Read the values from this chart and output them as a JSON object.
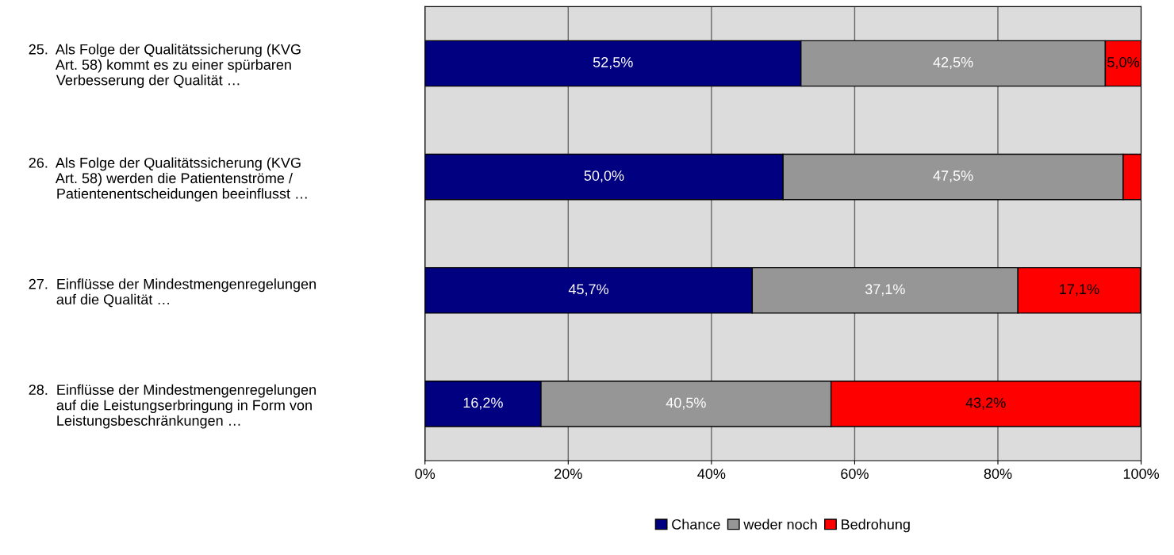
{
  "chart_data": {
    "type": "bar",
    "orientation": "horizontal",
    "stacked": true,
    "categories": [
      "25.  Als Folge der Qualitätssicherung (KVG\n       Art. 58) kommt es zu einer spürbaren\n       Verbesserung der Qualität …",
      "26.  Als Folge der Qualitätssicherung (KVG\n       Art. 58) werden die Patientenströme /\n       Patientenentscheidungen beeinflusst …",
      "27.  Einflüsse der Mindestmengenregelungen\n       auf die Qualität …",
      "28.  Einflüsse der Mindestmengenregelungen\n       auf die Leistungserbringung in Form von\n       Leistungsbeschränkungen …"
    ],
    "series": [
      {
        "name": "Chance",
        "color": "#000080",
        "values": [
          52.5,
          50.0,
          45.7,
          16.2
        ],
        "value_labels": [
          "52,5%",
          "50,0%",
          "45,7%",
          "16,2%"
        ]
      },
      {
        "name": "weder noch",
        "color": "#969696",
        "values": [
          42.5,
          47.5,
          37.1,
          40.5
        ],
        "value_labels": [
          "42,5%",
          "47,5%",
          "37,1%",
          "40,5%"
        ]
      },
      {
        "name": "Bedrohung",
        "color": "#ff0000",
        "values": [
          5.0,
          2.5,
          17.1,
          43.2
        ],
        "value_labels": [
          "5,0%",
          null,
          "17,1%",
          "43,2%"
        ]
      }
    ],
    "xlim": [
      0,
      100
    ],
    "xticks": [
      {
        "value": 0,
        "label": "0%"
      },
      {
        "value": 20,
        "label": "20%"
      },
      {
        "value": 40,
        "label": "40%"
      },
      {
        "value": 60,
        "label": "60%"
      },
      {
        "value": 80,
        "label": "80%"
      },
      {
        "value": 100,
        "label": "100%"
      }
    ],
    "grid": "x",
    "legend": "bottom"
  }
}
